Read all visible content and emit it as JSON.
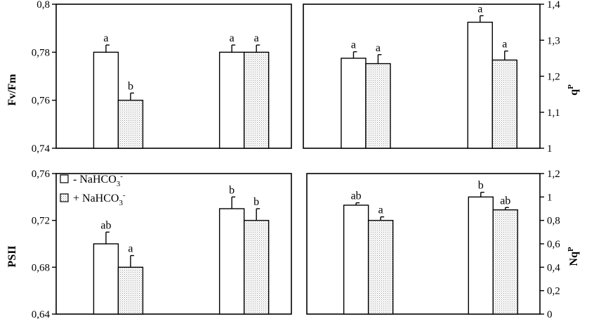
{
  "chart_data": [
    {
      "type": "bar",
      "ylabel": "Fv/Fm",
      "ylim": [
        0.74,
        0.8
      ],
      "yticks": [
        "0,74",
        "0,76",
        "0,78",
        "0,8"
      ],
      "axis_side": "left",
      "series": [
        {
          "name": "- NaHCO3-",
          "values": [
            0.78,
            0.78
          ],
          "errors": [
            0.003,
            0.003
          ],
          "labels": [
            "a",
            "a"
          ]
        },
        {
          "name": "+ NaHCO3-",
          "values": [
            0.76,
            0.78
          ],
          "errors": [
            0.003,
            0.003
          ],
          "labels": [
            "b",
            "a"
          ]
        }
      ]
    },
    {
      "type": "bar",
      "ylabel_main": "q",
      "ylabel_sup": "P",
      "ylim": [
        1.0,
        1.4
      ],
      "yticks": [
        "1",
        "1,1",
        "1,2",
        "1,3",
        "1,4"
      ],
      "axis_side": "right",
      "series": [
        {
          "name": "- NaHCO3-",
          "values": [
            1.25,
            1.35
          ],
          "errors": [
            0.018,
            0.018
          ],
          "labels": [
            "a",
            "a"
          ]
        },
        {
          "name": "+ NaHCO3-",
          "values": [
            1.235,
            1.245
          ],
          "errors": [
            0.025,
            0.025
          ],
          "labels": [
            "a",
            "a"
          ]
        }
      ]
    },
    {
      "type": "bar",
      "ylabel": "PSII",
      "ylim": [
        0.64,
        0.76
      ],
      "yticks": [
        "0,64",
        "0,68",
        "0,72",
        "0,76"
      ],
      "axis_side": "left",
      "series": [
        {
          "name": "- NaHCO3-",
          "values": [
            0.7,
            0.73
          ],
          "errors": [
            0.01,
            0.01
          ],
          "labels": [
            "ab",
            "b"
          ]
        },
        {
          "name": "+ NaHCO3-",
          "values": [
            0.68,
            0.72
          ],
          "errors": [
            0.01,
            0.01
          ],
          "labels": [
            "a",
            "b"
          ]
        }
      ]
    },
    {
      "type": "bar",
      "ylabel_main": "Nq",
      "ylabel_sup": "P",
      "ylim": [
        0,
        1.2
      ],
      "yticks": [
        "0",
        "0,2",
        "0,4",
        "0,6",
        "0,8",
        "1",
        "1,2"
      ],
      "axis_side": "right",
      "series": [
        {
          "name": "- NaHCO3-",
          "values": [
            0.93,
            1.0
          ],
          "errors": [
            0.02,
            0.04
          ],
          "labels": [
            "ab",
            "b"
          ]
        },
        {
          "name": "+ NaHCO3-",
          "values": [
            0.8,
            0.89
          ],
          "errors": [
            0.03,
            0.02
          ],
          "labels": [
            "a",
            "ab"
          ]
        }
      ]
    }
  ],
  "legend": {
    "items": [
      {
        "prefix": "- NaHCO",
        "sub": "3",
        "sup": "-"
      },
      {
        "prefix": "+ NaHCO",
        "sub": "3",
        "sup": "-"
      }
    ]
  },
  "colors": {
    "open_bar": "#ffffff",
    "dotted_fill": "#9a9a9a",
    "stroke": "#000000"
  }
}
